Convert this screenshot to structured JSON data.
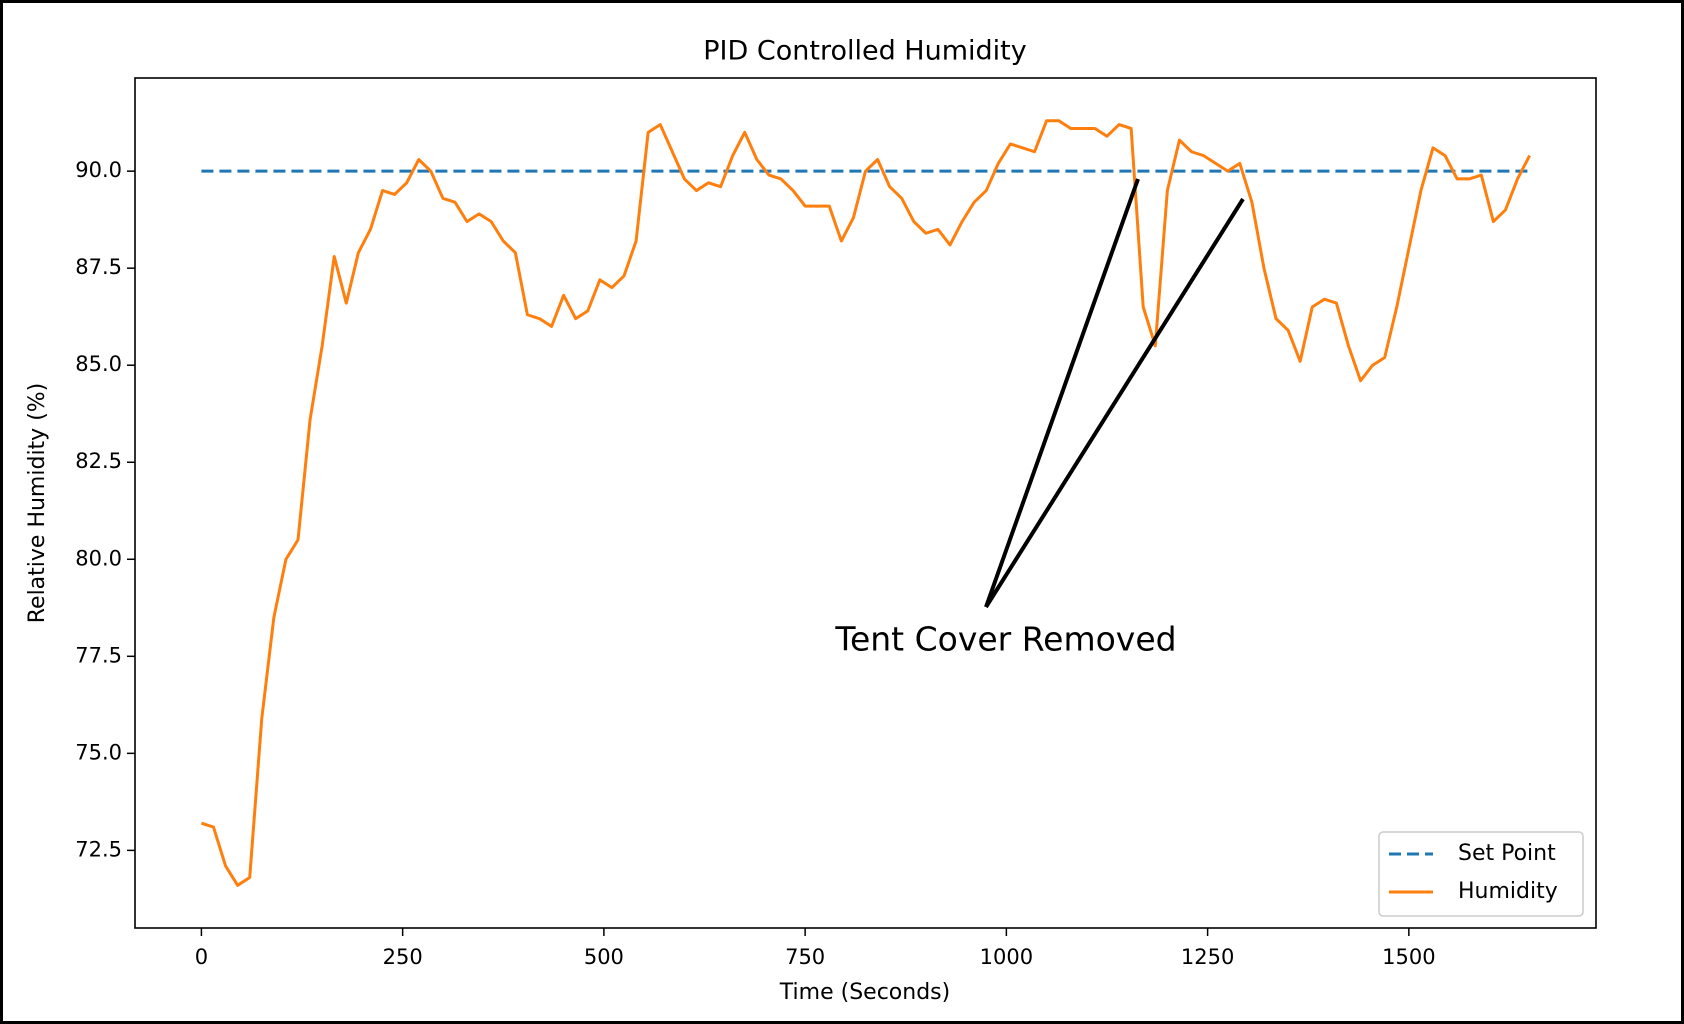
{
  "chart_data": {
    "type": "line",
    "title": "PID Controlled Humidity",
    "xlabel": "Time (Seconds)",
    "ylabel": "Relative Humidity (%)",
    "annotation": "Tent Cover Removed",
    "x": [
      0,
      15,
      30,
      45,
      60,
      75,
      90,
      105,
      120,
      135,
      150,
      165,
      180,
      195,
      210,
      225,
      240,
      255,
      270,
      285,
      300,
      315,
      330,
      345,
      360,
      375,
      390,
      405,
      420,
      435,
      450,
      465,
      480,
      495,
      510,
      525,
      540,
      555,
      570,
      585,
      600,
      615,
      630,
      645,
      660,
      675,
      690,
      705,
      720,
      735,
      750,
      765,
      780,
      795,
      810,
      825,
      840,
      855,
      870,
      885,
      900,
      915,
      930,
      945,
      960,
      975,
      990,
      1005,
      1020,
      1035,
      1050,
      1065,
      1080,
      1095,
      1110,
      1125,
      1140,
      1155,
      1170,
      1185,
      1200,
      1215,
      1230,
      1245,
      1260,
      1275,
      1290,
      1305,
      1320,
      1335,
      1350,
      1365,
      1380,
      1395,
      1410,
      1425,
      1440,
      1455,
      1470,
      1485,
      1500,
      1515,
      1530,
      1545,
      1560,
      1575,
      1590,
      1605,
      1620,
      1635,
      1650
    ],
    "series": [
      {
        "name": "Set Point",
        "color": "#1f77b4",
        "linestyle": "dashed",
        "values": [
          90,
          90,
          90,
          90,
          90,
          90,
          90,
          90,
          90,
          90,
          90,
          90,
          90,
          90,
          90,
          90,
          90,
          90,
          90,
          90,
          90,
          90,
          90,
          90,
          90,
          90,
          90,
          90,
          90,
          90,
          90,
          90,
          90,
          90,
          90,
          90,
          90,
          90,
          90,
          90,
          90,
          90,
          90,
          90,
          90,
          90,
          90,
          90,
          90,
          90,
          90,
          90,
          90,
          90,
          90,
          90,
          90,
          90,
          90,
          90,
          90,
          90,
          90,
          90,
          90,
          90,
          90,
          90,
          90,
          90,
          90,
          90,
          90,
          90,
          90,
          90,
          90,
          90,
          90,
          90,
          90,
          90,
          90,
          90,
          90,
          90,
          90,
          90,
          90,
          90,
          90,
          90,
          90,
          90,
          90,
          90,
          90,
          90,
          90,
          90,
          90,
          90,
          90,
          90,
          90,
          90,
          90,
          90,
          90,
          90,
          90
        ]
      },
      {
        "name": "Humidity",
        "color": "#ff7f0e",
        "linestyle": "solid",
        "values": [
          73.2,
          73.1,
          72.1,
          71.6,
          71.8,
          75.9,
          78.5,
          80.0,
          80.5,
          83.6,
          85.5,
          87.8,
          86.6,
          87.9,
          88.5,
          89.5,
          89.4,
          89.7,
          90.3,
          90.0,
          89.3,
          89.2,
          88.7,
          88.9,
          88.7,
          88.2,
          87.9,
          86.3,
          86.2,
          86.0,
          86.8,
          86.2,
          86.4,
          87.2,
          87.0,
          87.3,
          88.2,
          91.0,
          91.2,
          90.5,
          89.8,
          89.5,
          89.7,
          89.6,
          90.4,
          91.0,
          90.3,
          89.9,
          89.8,
          89.5,
          89.1,
          89.1,
          89.1,
          88.2,
          88.8,
          90.0,
          90.3,
          89.6,
          89.3,
          88.7,
          88.4,
          88.5,
          88.1,
          88.7,
          89.2,
          89.5,
          90.2,
          90.7,
          90.6,
          90.5,
          91.3,
          91.3,
          91.1,
          91.1,
          91.1,
          90.9,
          91.2,
          91.1,
          86.5,
          85.5,
          89.5,
          90.8,
          90.5,
          90.4,
          90.2,
          90.0,
          90.2,
          89.2,
          87.5,
          86.2,
          85.9,
          85.1,
          86.5,
          86.7,
          86.6,
          85.5,
          84.6,
          85.0,
          85.2,
          86.5,
          88.0,
          89.5,
          90.6,
          90.4,
          89.8,
          89.8,
          89.9,
          88.7,
          89.0,
          89.8,
          90.4
        ]
      }
    ],
    "xlim": [
      -82.5,
      1732.5
    ],
    "xticks": [
      0,
      250,
      500,
      750,
      1000,
      1250,
      1500
    ],
    "ylim": [
      70.5,
      92.4
    ],
    "yticks": [
      72.5,
      {
        "value": 75,
        "label": "75.0"
      },
      77.5,
      {
        "value": 80,
        "label": "80.0"
      },
      82.5,
      {
        "value": 85,
        "label": "85.0"
      },
      87.5,
      {
        "value": 90,
        "label": "90.0"
      }
    ],
    "legend": "lower right"
  }
}
